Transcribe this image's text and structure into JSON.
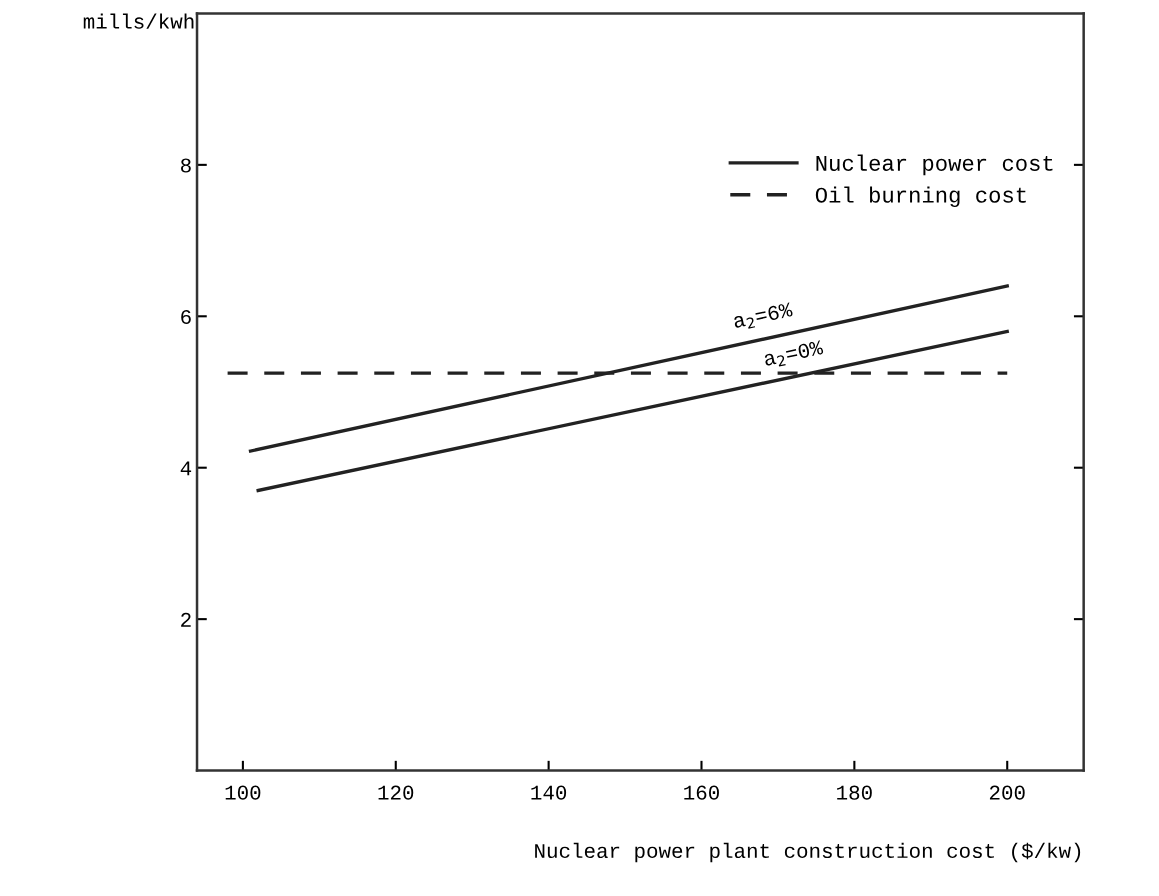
{
  "chart_data": {
    "type": "line",
    "xlabel": "Nuclear power plant construction cost ($/kw)",
    "ylabel": "mills/kwh",
    "xlim": [
      94,
      210
    ],
    "xticks": [
      100,
      120,
      140,
      160,
      180,
      200
    ],
    "ylim": [
      0,
      10
    ],
    "yticks": [
      2,
      4,
      6,
      8
    ],
    "series": [
      {
        "name": "Nuclear power cost",
        "color": "#222222",
        "line_style": "solid",
        "x": [
          101,
          200
        ],
        "values": [
          4.22,
          6.4
        ]
      },
      {
        "color": "#222222",
        "line_style": "solid",
        "x": [
          102,
          200
        ],
        "values": [
          3.7,
          5.8
        ]
      },
      {
        "name": "Oil burning cost",
        "color": "#222222",
        "line_style": "dashed",
        "x": [
          98,
          200
        ],
        "values": [
          5.25,
          5.25
        ]
      }
    ],
    "annotations": [
      {
        "text": "a$_{2}$=6%",
        "x": 168,
        "y": 5.7
      },
      {
        "text": "a$_{2}$=0%",
        "x": 172,
        "y": 5.2
      }
    ],
    "legend": "top right",
    "grid": false,
    "marker": "none"
  }
}
